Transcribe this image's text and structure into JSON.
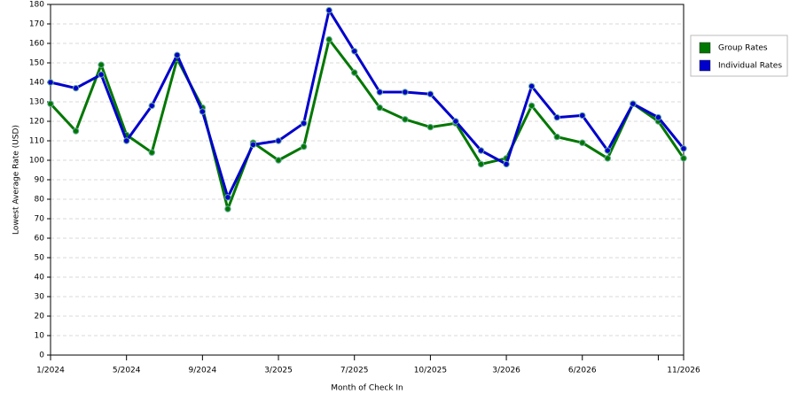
{
  "chart_data": {
    "type": "line",
    "x_label": "Month of Check In",
    "y_label": "Lowest Average Rate (USD)",
    "categories": [
      "1/2024",
      null,
      null,
      "5/2024",
      null,
      null,
      "9/2024",
      null,
      null,
      "3/2025",
      null,
      null,
      "7/2025",
      null,
      null,
      "10/2025",
      null,
      null,
      "3/2026",
      null,
      null,
      "6/2026",
      null,
      null,
      null,
      "11/2026"
    ],
    "series": [
      {
        "name": "Group Rates",
        "color": "#007700",
        "values": [
          129,
          115,
          149,
          113,
          104,
          152,
          127,
          75,
          109,
          100,
          107,
          162,
          145,
          127,
          121,
          117,
          119,
          98,
          101,
          128,
          112,
          109,
          101,
          129,
          120,
          101
        ]
      },
      {
        "name": "Individual Rates",
        "color": "#0000cc",
        "values": [
          140,
          137,
          144,
          110,
          128,
          154,
          125,
          81,
          108,
          110,
          119,
          177,
          156,
          135,
          135,
          134,
          120,
          105,
          98,
          138,
          122,
          123,
          105,
          129,
          122,
          106
        ]
      }
    ],
    "ylim": [
      0,
      180
    ],
    "yticks": [
      0,
      10,
      20,
      30,
      40,
      50,
      60,
      70,
      80,
      90,
      100,
      110,
      120,
      130,
      140,
      150,
      160,
      170,
      180
    ],
    "grid": true,
    "legend": "right"
  }
}
